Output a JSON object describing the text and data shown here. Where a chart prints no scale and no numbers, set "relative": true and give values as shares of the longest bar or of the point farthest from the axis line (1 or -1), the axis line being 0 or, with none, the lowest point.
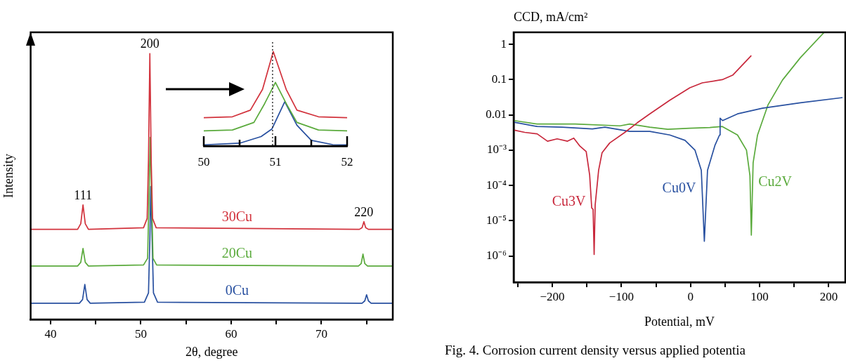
{
  "chart_data": [
    {
      "type": "line",
      "relative": true,
      "xlabel": "2θ, degree",
      "ylabel": "Intensity",
      "xlim": [
        37.8,
        77.9
      ],
      "xticks": [
        40,
        {
          "value": 45,
          "label": null
        },
        50,
        {
          "value": 55,
          "label": null
        },
        60,
        {
          "value": 65,
          "label": null
        },
        70,
        {
          "value": 75,
          "label": null
        }
      ],
      "series": [
        {
          "name": "30Cu",
          "color": "#d2323c",
          "x": [
            37.8,
            43.0,
            43.35,
            43.6,
            43.85,
            44.2,
            50.3,
            50.7,
            50.85,
            51.0,
            51.15,
            51.3,
            51.7,
            74.2,
            74.5,
            74.7,
            74.9,
            75.2,
            77.9
          ],
          "values": [
            0.339,
            0.339,
            0.36,
            0.431,
            0.36,
            0.339,
            0.345,
            0.38,
            0.6,
            1.0,
            0.6,
            0.38,
            0.345,
            0.339,
            0.345,
            0.368,
            0.345,
            0.339,
            0.339
          ]
        },
        {
          "name": "20Cu",
          "color": "#5aaa3c",
          "x": [
            37.8,
            43.0,
            43.35,
            43.6,
            43.85,
            44.2,
            50.3,
            50.75,
            50.9,
            51.05,
            51.2,
            51.35,
            51.75,
            74.1,
            74.4,
            74.6,
            74.8,
            75.1,
            77.9
          ],
          "values": [
            0.201,
            0.201,
            0.215,
            0.267,
            0.215,
            0.201,
            0.205,
            0.23,
            0.45,
            0.685,
            0.45,
            0.23,
            0.205,
            0.201,
            0.21,
            0.246,
            0.21,
            0.201,
            0.201
          ]
        },
        {
          "name": "0Cu",
          "color": "#2850a0",
          "x": [
            37.8,
            43.2,
            43.55,
            43.8,
            44.05,
            44.4,
            50.4,
            50.85,
            51.0,
            51.1,
            51.25,
            51.4,
            51.85,
            74.5,
            74.8,
            75.0,
            75.2,
            75.5,
            77.9
          ],
          "values": [
            0.061,
            0.061,
            0.075,
            0.132,
            0.075,
            0.061,
            0.065,
            0.1,
            0.3,
            0.5,
            0.3,
            0.1,
            0.065,
            0.061,
            0.07,
            0.093,
            0.07,
            0.061,
            0.061
          ]
        }
      ],
      "annotations": [
        {
          "text": "111",
          "x": 43.6,
          "y": 0.431
        },
        {
          "text": "200",
          "x": 51.0,
          "y": 1.0
        },
        {
          "text": "220",
          "x": 74.7,
          "y": 0.368
        }
      ]
    },
    {
      "type": "line",
      "relative": true,
      "xlim": [
        50,
        52
      ],
      "xticks": [
        50,
        {
          "value": 50.5,
          "label": null
        },
        51,
        {
          "value": 51.5,
          "label": null
        },
        52
      ],
      "ref_lines": [
        {
          "axis": "x",
          "value": 50.96,
          "color": "#333333",
          "line_style": "dotted"
        }
      ],
      "series": [
        {
          "color": "#d2323c",
          "x": [
            50,
            50.4,
            50.65,
            50.82,
            50.97,
            51.15,
            51.3,
            51.6,
            52
          ],
          "values": [
            0.3,
            0.31,
            0.38,
            0.6,
            1.0,
            0.6,
            0.38,
            0.31,
            0.3
          ]
        },
        {
          "color": "#5aaa3c",
          "x": [
            50,
            50.4,
            50.7,
            50.85,
            51.0,
            51.15,
            51.3,
            51.6,
            52
          ],
          "values": [
            0.16,
            0.17,
            0.25,
            0.45,
            0.674,
            0.45,
            0.25,
            0.17,
            0.16
          ]
        },
        {
          "color": "#2850a0",
          "x": [
            50,
            50.5,
            50.8,
            50.95,
            51.13,
            51.3,
            51.5,
            51.8,
            52
          ],
          "values": [
            0.013,
            0.03,
            0.1,
            0.18,
            0.47,
            0.22,
            0.06,
            0.015,
            0.013
          ]
        }
      ]
    },
    {
      "type": "line",
      "log": "y",
      "xlabel": "Potential, mV",
      "ylabel": "CCD, mA/cm²",
      "xlim": [
        -256,
        224
      ],
      "ylim": [
        1.8e-07,
        2.2
      ],
      "xticks": [
        {
          "value": -250,
          "label": null
        },
        {
          "value": -200,
          "label": "−200"
        },
        {
          "value": -150,
          "label": null
        },
        {
          "value": -100,
          "label": "−100"
        },
        {
          "value": -50,
          "label": null
        },
        0,
        {
          "value": 50,
          "label": null
        },
        100,
        {
          "value": 150,
          "label": null
        },
        200
      ],
      "yticks": [
        {
          "value": 1e-06,
          "label": "10⁻⁶"
        },
        {
          "value": 1e-05,
          "label": "10⁻⁵"
        },
        {
          "value": 0.0001,
          "label": "10⁻⁴"
        },
        {
          "value": 0.001,
          "label": "10⁻³"
        },
        0.01,
        0.1,
        1
      ],
      "series": [
        {
          "name": "Cu3V",
          "color": "#c8283c",
          "x": [
            -255,
            -240,
            -222,
            -207,
            -193,
            -178,
            -169,
            -160,
            -151,
            -146,
            -143,
            -141,
            -139.5,
            -138,
            -133,
            -128,
            -117,
            -95,
            -77,
            -59,
            -30,
            -1,
            17,
            46,
            61,
            75,
            88
          ],
          "values": [
            0.0037,
            0.0032,
            0.0029,
            0.0018,
            0.0021,
            0.0018,
            0.0022,
            0.0013,
            0.00091,
            0.0002,
            2.3e-05,
            2.1e-05,
            1.1e-06,
            2.8e-05,
            0.00027,
            0.00085,
            0.0016,
            0.0032,
            0.006,
            0.0107,
            0.026,
            0.059,
            0.081,
            0.1,
            0.134,
            0.26,
            0.48
          ]
        },
        {
          "name": "Cu0V",
          "color": "#2850a0",
          "x": [
            -255,
            -222,
            -186,
            -142,
            -124,
            -88,
            -59,
            -30,
            -8,
            6.5,
            15.6,
            20,
            24.6,
            35.5,
            42,
            42.8,
            46.4,
            68,
            104,
            159,
            220
          ],
          "values": [
            0.0062,
            0.0047,
            0.0045,
            0.004,
            0.0045,
            0.0034,
            0.0034,
            0.0027,
            0.0019,
            0.001,
            0.00027,
            2.6e-06,
            0.00027,
            0.0014,
            0.0027,
            0.0081,
            0.0069,
            0.0107,
            0.0155,
            0.022,
            0.031
          ]
        },
        {
          "name": "Cu2V",
          "color": "#5aaa3c",
          "x": [
            -255,
            -222,
            -167,
            -102,
            -88,
            -59,
            -33,
            -1,
            28,
            46,
            68,
            81,
            86,
            88,
            90.6,
            97,
            112,
            133,
            159,
            193
          ],
          "values": [
            0.0069,
            0.0055,
            0.0055,
            0.0049,
            0.0055,
            0.0045,
            0.0039,
            0.0042,
            0.0044,
            0.0047,
            0.0027,
            0.001,
            0.00019,
            3.9e-06,
            0.00044,
            0.0027,
            0.019,
            0.097,
            0.42,
            2.15
          ]
        }
      ],
      "annotations": [
        "Fig. 4. Corrosion current density versus applied potentia"
      ]
    }
  ]
}
